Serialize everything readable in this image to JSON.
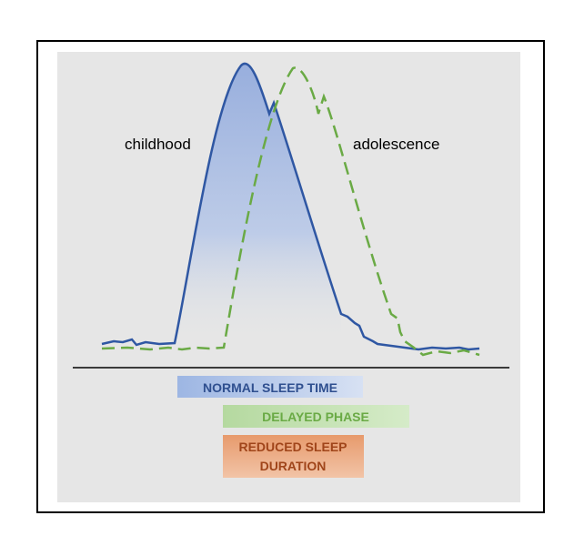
{
  "labels": {
    "left": "childhood",
    "right": "adolescence"
  },
  "bars": [
    {
      "lines": [
        "NORMAL SLEEP TIME"
      ]
    },
    {
      "lines": [
        "DELAYED PHASE"
      ]
    },
    {
      "lines": [
        "REDUCED SLEEP",
        "DURATION"
      ]
    }
  ]
}
